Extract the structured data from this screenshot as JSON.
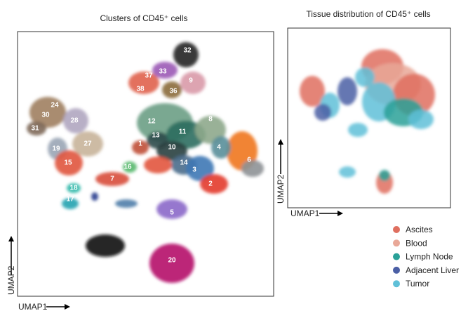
{
  "panels": [
    {
      "title": "Clusters of CD45⁺ cells",
      "x_label": "UMAP1",
      "y_label": "UMAP2",
      "clusters": [
        "32",
        "33",
        "37",
        "38",
        "9",
        "36",
        "30",
        "24",
        "28",
        "31",
        "19",
        "27",
        "15",
        "12",
        "13",
        "11",
        "10",
        "14",
        "3",
        "6",
        "2",
        "18",
        "17",
        "16",
        "5",
        "20",
        "8",
        "4",
        "1",
        "7"
      ]
    },
    {
      "title": "Tissue distribution of CD45⁺ cells",
      "x_label": "UMAP1",
      "y_label": "UMAP2"
    }
  ],
  "legend": [
    {
      "label": "Ascites",
      "color": "#df6f5f"
    },
    {
      "label": "Blood",
      "color": "#e9a898"
    },
    {
      "label": "Lymph Node",
      "color": "#2aa198"
    },
    {
      "label": "Adjacent Liver",
      "color": "#4b5fa5"
    },
    {
      "label": "Tumor",
      "color": "#5fc0d8"
    }
  ]
}
